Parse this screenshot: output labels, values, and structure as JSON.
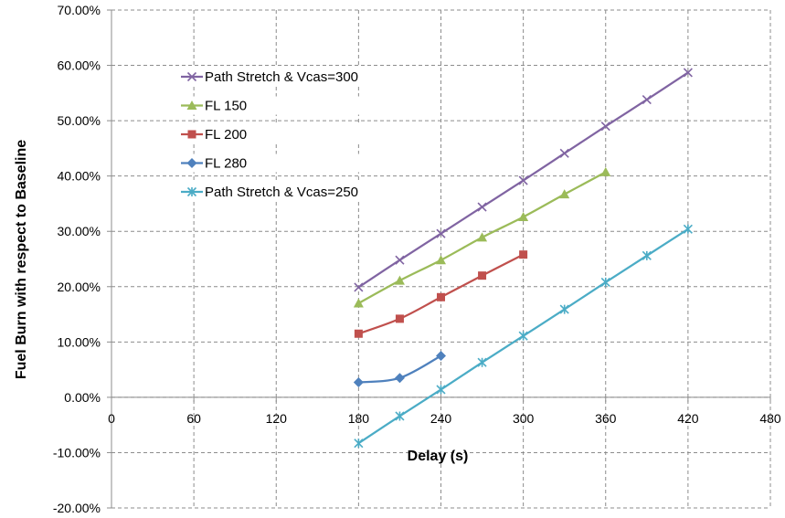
{
  "chart_data": {
    "type": "line",
    "title": "",
    "xlabel": "Delay (s)",
    "ylabel": "Fuel Burn with respect to Baseline",
    "xlim": [
      0,
      480
    ],
    "ylim": [
      -0.2,
      0.7
    ],
    "x_ticks": [
      0,
      60,
      120,
      180,
      240,
      300,
      360,
      420,
      480
    ],
    "x_tick_labels": [
      "0",
      "60",
      "120",
      "180",
      "240",
      "300",
      "360",
      "420",
      "480"
    ],
    "y_ticks": [
      -0.2,
      -0.1,
      0,
      0.1,
      0.2,
      0.3,
      0.4,
      0.5,
      0.6,
      0.7
    ],
    "y_tick_labels": [
      "-20.00%",
      "-10.00%",
      "0.00%",
      "10.00%",
      "20.00%",
      "30.00%",
      "40.00%",
      "50.00%",
      "60.00%",
      "70.00%"
    ],
    "grid": true,
    "legend_position": "top-left",
    "series": [
      {
        "name": "Path Stretch & Vcas=300",
        "color": "#8064a2",
        "marker": "x",
        "x": [
          180,
          210,
          240,
          270,
          300,
          330,
          360,
          390,
          420
        ],
        "y": [
          0.199,
          0.248,
          0.296,
          0.344,
          0.392,
          0.441,
          0.49,
          0.538,
          0.587
        ]
      },
      {
        "name": "FL 150",
        "color": "#9bbb59",
        "marker": "triangle",
        "x": [
          180,
          210,
          240,
          270,
          300,
          330,
          360
        ],
        "y": [
          0.17,
          0.211,
          0.248,
          0.289,
          0.326,
          0.367,
          0.407
        ]
      },
      {
        "name": "FL 200",
        "color": "#c0504d",
        "marker": "square",
        "x": [
          180,
          210,
          240,
          270,
          300
        ],
        "y": [
          0.115,
          0.142,
          0.181,
          0.22,
          0.258
        ]
      },
      {
        "name": "FL 280",
        "color": "#4f81bd",
        "marker": "diamond",
        "x": [
          180,
          210,
          240
        ],
        "y": [
          0.027,
          0.035,
          0.075
        ]
      },
      {
        "name": "Path Stretch & Vcas=250",
        "color": "#4bacc6",
        "marker": "star",
        "x": [
          180,
          210,
          240,
          270,
          300,
          330,
          360,
          390,
          420
        ],
        "y": [
          -0.083,
          -0.034,
          0.014,
          0.063,
          0.111,
          0.159,
          0.208,
          0.256,
          0.304
        ]
      }
    ]
  }
}
